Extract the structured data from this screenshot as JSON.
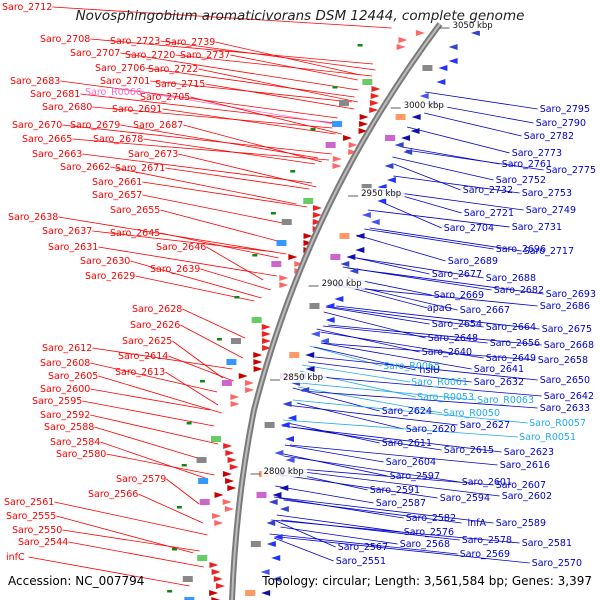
{
  "title": "Novosphingobium aromaticivorans DSM 12444, complete genome",
  "footer": {
    "accession_label": "Accession:",
    "accession": "NC_007794",
    "topology_label": "Topology:",
    "topology": "circular",
    "length_label": "Length:",
    "length": "3,561,584 bp",
    "genes_label": "Genes:",
    "genes": "3,397"
  },
  "colors": {
    "forward_strand": "#ff0000",
    "reverse_strand": "#0000cc",
    "rna_label": "#ff66cc",
    "rna_label_reverse": "#22aaee",
    "backbone": "#888888",
    "tick": "#118811"
  },
  "kbp_markers": [
    "3050 kbp",
    "3000 kbp",
    "2950 kbp",
    "2900 kbp",
    "2850 kbp",
    "2800 kbp"
  ],
  "left_labels": [
    "Saro_2712",
    "Saro_2708",
    "Saro_2723",
    "Saro_2739",
    "Saro_2707",
    "Saro_2720",
    "Saro_2737",
    "Saro_2706",
    "Saro_2722",
    "Saro_2683",
    "Saro_2701",
    "Saro_2715",
    "Saro_2681",
    "Saro_R0066",
    "Saro_2705",
    "Saro_2680",
    "Saro_2691",
    "Saro_2670",
    "Saro_2679",
    "Saro_2687",
    "Saro_2665",
    "Saro_2678",
    "Saro_2663",
    "Saro_2673",
    "Saro_2662",
    "Saro_2671",
    "Saro_2661",
    "Saro_2657",
    "Saro_2655",
    "Saro_2638",
    "Saro_2637",
    "Saro_2645",
    "Saro_2631",
    "Saro_2646",
    "Saro_2630",
    "Saro_2639",
    "Saro_2629",
    "Saro_2628",
    "Saro_2626",
    "Saro_2625",
    "Saro_2612",
    "Saro_2614",
    "Saro_2608",
    "Saro_2613",
    "Saro_2605",
    "Saro_2600",
    "Saro_2595",
    "Saro_2592",
    "Saro_2588",
    "Saro_2584",
    "Saro_2580",
    "Saro_2579",
    "Saro_2566",
    "Saro_2561",
    "Saro_2555",
    "Saro_2550",
    "Saro_2544",
    "infC"
  ],
  "right_labels": [
    "Saro_2795",
    "Saro_2790",
    "Saro_2782",
    "Saro_2773",
    "Saro_2761",
    "Saro_2775",
    "Saro_2752",
    "Saro_2732",
    "Saro_2753",
    "Saro_2749",
    "Saro_2721",
    "Saro_2704",
    "Saro_2731",
    "Saro_2696",
    "Saro_2717",
    "Saro_2689",
    "Saro_2677",
    "Saro_2688",
    "Saro_2682",
    "Saro_2693",
    "Saro_2669",
    "Saro_2686",
    "apaG",
    "Saro_2667",
    "Saro_2654",
    "Saro_2664",
    "Saro_2675",
    "Saro_2648",
    "Saro_2656",
    "Saro_2668",
    "Saro_2640",
    "Saro_2649",
    "Saro_2658",
    "Saro_R0065",
    "hslU",
    "Saro_2641",
    "Saro_R0061",
    "Saro_2632",
    "Saro_2650",
    "Saro_R0053",
    "Saro_R0063",
    "Saro_2642",
    "Saro_2624",
    "Saro_R0050",
    "Saro_2633",
    "Saro_2627",
    "Saro_R0057",
    "Saro_2620",
    "Saro_R0051",
    "Saro_2611",
    "Saro_2615",
    "Saro_2623",
    "Saro_2604",
    "Saro_2616",
    "Saro_2597",
    "Saro_2601",
    "Saro_2607",
    "Saro_2591",
    "Saro_2594",
    "Saro_2602",
    "Saro_2587",
    "Saro_2582",
    "infA",
    "Saro_2589",
    "Saro_2576",
    "Saro_2578",
    "Saro_2581",
    "Saro_2567",
    "Saro_2568",
    "Saro_2569",
    "Saro_2551",
    "Saro_2570"
  ]
}
